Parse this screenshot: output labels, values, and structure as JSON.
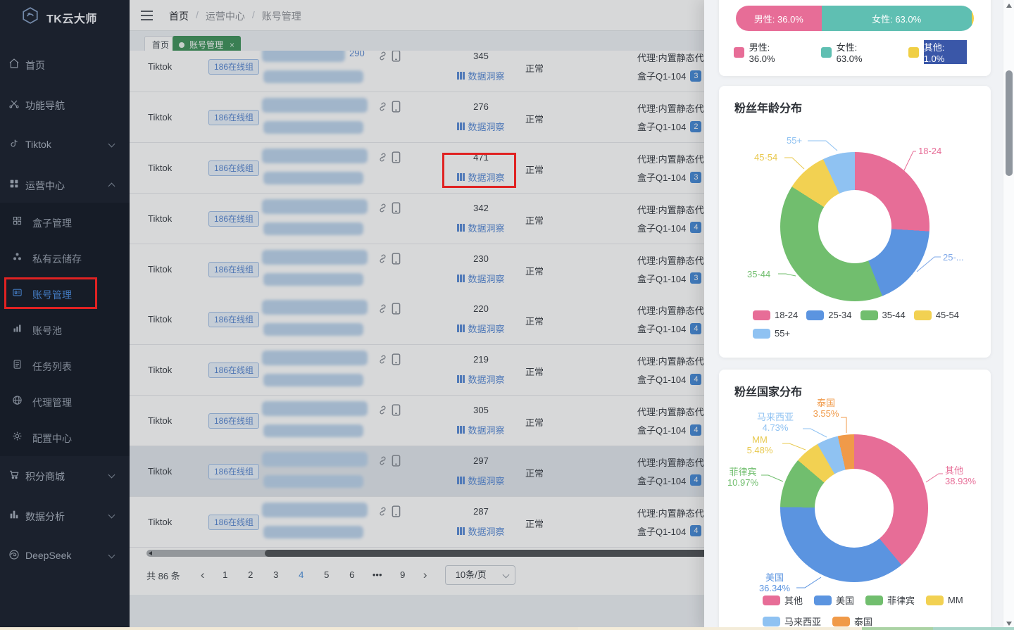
{
  "colors": {
    "accent_blue": "#4C8FDB",
    "link_blue": "#6090D8",
    "tag_blue": "#5C8AD2",
    "annotation_red": "#E02222",
    "tab_green": "#459660",
    "selection_blue": "#3A57A8"
  },
  "sidebar": {
    "logo_text": "TK云大师",
    "items_top": [
      {
        "label": "首页",
        "icon": "home-icon"
      },
      {
        "label": "功能导航",
        "icon": "tools-icon"
      },
      {
        "label": "Tiktok",
        "icon": "tiktok-icon",
        "chevron": "down"
      },
      {
        "label": "运营中心",
        "icon": "operations-icon",
        "chevron": "up",
        "expanded": true
      }
    ],
    "submenu": [
      {
        "label": "盒子管理",
        "icon": "box-grid-icon"
      },
      {
        "label": "私有云储存",
        "icon": "cloud-storage-icon"
      },
      {
        "label": "账号管理",
        "icon": "account-manage-icon",
        "active": true
      },
      {
        "label": "账号池",
        "icon": "account-pool-icon"
      },
      {
        "label": "任务列表",
        "icon": "task-list-icon"
      },
      {
        "label": "代理管理",
        "icon": "proxy-globe-icon"
      },
      {
        "label": "配置中心",
        "icon": "config-gear-icon"
      }
    ],
    "items_bottom": [
      {
        "label": "积分商城",
        "icon": "points-mall-icon",
        "chevron": "down"
      },
      {
        "label": "数据分析",
        "icon": "data-analytics-icon",
        "chevron": "down"
      },
      {
        "label": "DeepSeek",
        "icon": "deepseek-icon",
        "chevron": "down"
      }
    ]
  },
  "topbar": {
    "breadcrumb": [
      "首页",
      "运营中心",
      "账号管理"
    ],
    "separator": "/"
  },
  "tabs": {
    "home": {
      "label": "首页"
    },
    "active": {
      "label": "账号管理",
      "close": "×"
    }
  },
  "table": {
    "shared": {
      "platform": "Tiktok",
      "group_tag": "186在线组",
      "insight_label": "数据洞察",
      "status_normal": "正常",
      "proxy_line": "代理:内置静态代",
      "box_label": "盒子Q1-104"
    },
    "rows": [
      {
        "fans": "345",
        "badge": "3",
        "extra": "290"
      },
      {
        "fans": "276",
        "badge": "2"
      },
      {
        "fans": "471",
        "badge": "3",
        "annotated": true
      },
      {
        "fans": "342",
        "badge": "4"
      },
      {
        "fans": "230",
        "badge": "3"
      },
      {
        "fans": "220",
        "badge": "4"
      },
      {
        "fans": "219",
        "badge": "4"
      },
      {
        "fans": "305",
        "badge": "4"
      },
      {
        "fans": "297",
        "badge": "4",
        "highlighted": true
      },
      {
        "fans": "287",
        "badge": "4"
      }
    ]
  },
  "pagination": {
    "total_label": "共 86 条",
    "prev": "‹",
    "next": "›",
    "pages": [
      {
        "n": "1"
      },
      {
        "n": "2"
      },
      {
        "n": "3"
      },
      {
        "n": "4",
        "active": true
      },
      {
        "n": "5"
      },
      {
        "n": "6"
      },
      {
        "n": "•••"
      },
      {
        "n": "9"
      }
    ],
    "page_size": "10条/页"
  },
  "drawer": {
    "gender": {
      "bar_segments": [
        {
          "label": "男性: 36.0%"
        },
        {
          "label": "女性: 63.0%"
        },
        {
          "label": ""
        }
      ],
      "legend": [
        {
          "label": "男性: 36.0%",
          "color": "#E76D97"
        },
        {
          "label": "女性: 63.0%",
          "color": "#5FBFB2"
        },
        {
          "label": "其他: 1.0%",
          "color": "#F0CF45",
          "selected": true
        }
      ]
    },
    "age": {
      "title": "粉丝年龄分布",
      "slice_labels": [
        {
          "text": "55+",
          "color": "#8FC2F2"
        },
        {
          "text": "45-54",
          "color": "#E9C94F"
        },
        {
          "text": "18-24",
          "color": "#E76D97"
        },
        {
          "text": "25-...",
          "color": "#7FA8E8"
        },
        {
          "text": "35-44",
          "color": "#71BE6E"
        }
      ],
      "legend": [
        {
          "label": "18-24",
          "color": "#E76D97"
        },
        {
          "label": "25-34",
          "color": "#5B94E0"
        },
        {
          "label": "35-44",
          "color": "#71BE6E"
        },
        {
          "label": "45-54",
          "color": "#F2D152"
        },
        {
          "label": "55+",
          "color": "#8FC2F2"
        }
      ]
    },
    "country": {
      "title": "粉丝国家分布",
      "slice_labels": [
        {
          "name": "泰国",
          "pct": "3.55%",
          "color": "#F09A49"
        },
        {
          "name": "马来西亚",
          "pct": "4.73%",
          "color": "#8FC2F2"
        },
        {
          "name": "MM",
          "pct": "5.48%",
          "color": "#E8C94E"
        },
        {
          "name": "菲律宾",
          "pct": "10.97%",
          "color": "#71BE6E"
        },
        {
          "name": "其他",
          "pct": "38.93%",
          "color": "#E76D97"
        },
        {
          "name": "美国",
          "pct": "36.34%",
          "color": "#5B94E0"
        }
      ],
      "legend": [
        {
          "label": "其他",
          "color": "#E76D97"
        },
        {
          "label": "美国",
          "color": "#5B94E0"
        },
        {
          "label": "菲律宾",
          "color": "#71BE6E"
        },
        {
          "label": "MM",
          "color": "#F2D152"
        },
        {
          "label": "马来西亚",
          "color": "#8FC2F2"
        },
        {
          "label": "泰国",
          "color": "#F09A49"
        }
      ]
    }
  },
  "chart_data": [
    {
      "type": "bar",
      "orientation": "horizontal_stacked",
      "unit": "%",
      "series": [
        {
          "name": "男性",
          "value": 36.0,
          "color": "#E76D97"
        },
        {
          "name": "女性",
          "value": 63.0,
          "color": "#5FBFB2"
        },
        {
          "name": "其他",
          "value": 1.0,
          "color": "#F0CF45"
        }
      ]
    },
    {
      "type": "pie",
      "title": "粉丝年龄分布",
      "donut": true,
      "categories": [
        "18-24",
        "25-34",
        "35-44",
        "45-54",
        "55+"
      ],
      "values": [
        26,
        18,
        40,
        9,
        7
      ],
      "colors": [
        "#E76D97",
        "#5B94E0",
        "#71BE6E",
        "#F2D152",
        "#8FC2F2"
      ],
      "legend_position": "bottom"
    },
    {
      "type": "pie",
      "title": "粉丝国家分布",
      "donut": true,
      "categories": [
        "其他",
        "美国",
        "菲律宾",
        "MM",
        "马来西亚",
        "泰国"
      ],
      "values": [
        38.93,
        36.34,
        10.97,
        5.48,
        4.73,
        3.55
      ],
      "colors": [
        "#E76D97",
        "#5B94E0",
        "#71BE6E",
        "#F2D152",
        "#8FC2F2",
        "#F09A49"
      ],
      "legend_position": "bottom"
    }
  ]
}
